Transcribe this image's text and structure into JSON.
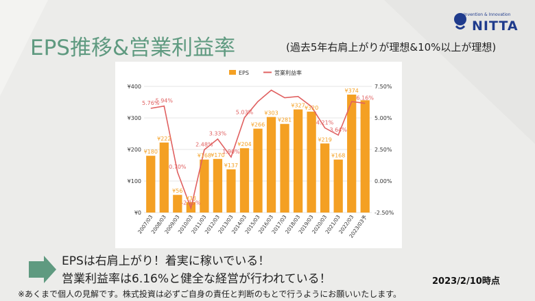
{
  "slide": {
    "title": "EPS推移&営業利益率",
    "subtitle": "(過去5年右肩上がりが理想&10%以上が理想)",
    "message_line1": "EPSは右肩上がり！着実に稼いでいる！",
    "message_line2": "営業利益率は6.16%と健全な経営が行われている！",
    "as_of": "2023/2/10時点",
    "footnote": "※あくまで個人の見解です。株式投資は必ずご自身の責任と判断のもとで行うようにお願いいたします。"
  },
  "logo": {
    "tagline": "Invention & Innovation",
    "name": "NITTA"
  },
  "colors": {
    "title": "#5f9a80",
    "bar": "#f4a023",
    "line": "#e06060",
    "arrow": "#5f9a80",
    "logo": "#1f3b8c"
  },
  "chart_data": {
    "type": "bar",
    "categories": [
      "2007/03",
      "2008/03",
      "2009/03",
      "2010/03",
      "2011/03",
      "2012/03",
      "2013/03",
      "2014/03",
      "2015/03",
      "2016/03",
      "2017/03",
      "2018/03",
      "2019/03",
      "2020/03",
      "2021/03",
      "2022/03",
      "2023/03予"
    ],
    "legend_position": "top",
    "series": [
      {
        "name": "EPS",
        "type": "bar",
        "axis": "left",
        "values": [
          180,
          222,
          56,
          33,
          168,
          170,
          137,
          204,
          266,
          303,
          281,
          327,
          320,
          219,
          168,
          374,
          356
        ],
        "labels": [
          "¥180",
          "¥222",
          "¥56",
          "¥33",
          "¥168",
          "¥170",
          "¥137",
          "¥204",
          "¥266",
          "¥303",
          "¥281",
          "¥327",
          "¥320",
          "¥219",
          "¥168",
          "¥374",
          ""
        ]
      },
      {
        "name": "営業利益率",
        "type": "line",
        "axis": "right",
        "values": [
          5.76,
          5.94,
          0.7,
          -2.15,
          2.48,
          3.33,
          1.9,
          5.03,
          6.3,
          7.2,
          6.6,
          6.7,
          5.9,
          4.21,
          3.64,
          6.3,
          6.16
        ],
        "labels": [
          "5.76%",
          "5.94%",
          "0.70%",
          "-2.15%",
          "2.48%",
          "3.33%",
          "1.90%",
          "5.03%",
          "",
          "",
          "",
          "",
          "",
          "4.21%",
          "3.64%",
          "",
          "6.16%"
        ]
      }
    ],
    "left_axis": {
      "ticks": [
        "¥0",
        "¥100",
        "¥200",
        "¥300",
        "¥400"
      ],
      "ylim": [
        0,
        400
      ]
    },
    "right_axis": {
      "ticks": [
        "-2.50%",
        "0.00%",
        "2.50%",
        "5.00%",
        "7.50%"
      ],
      "ylim": [
        -2.5,
        7.5
      ]
    },
    "grid": true
  }
}
